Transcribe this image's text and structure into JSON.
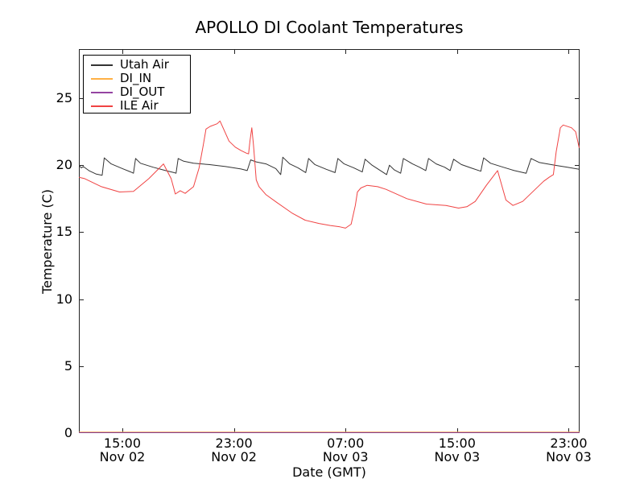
{
  "chart_data": {
    "type": "line",
    "title": "APOLLO DI Coolant Temperatures",
    "xlabel": "Date (GMT)",
    "ylabel": "Temperature (C)",
    "x_unit": "hours since Nov 02 00:00 GMT",
    "xlim_hours": [
      11.885,
      47.78
    ],
    "ylim": [
      0,
      28.67
    ],
    "grid": false,
    "legend_position": "upper left",
    "y_ticks": [
      0,
      5,
      10,
      15,
      20,
      25
    ],
    "x_ticks": [
      {
        "hour": 15,
        "time": "15:00",
        "date": "Nov 02"
      },
      {
        "hour": 23,
        "time": "23:00",
        "date": "Nov 02"
      },
      {
        "hour": 31,
        "time": "07:00",
        "date": "Nov 03"
      },
      {
        "hour": 39,
        "time": "15:00",
        "date": "Nov 03"
      },
      {
        "hour": 47,
        "time": "23:00",
        "date": "Nov 03"
      }
    ],
    "series": [
      {
        "name": "Utah Air",
        "color": "#333333",
        "points": [
          [
            11.89,
            20.0
          ],
          [
            12.05,
            19.8
          ],
          [
            12.2,
            19.9
          ],
          [
            12.6,
            19.6
          ],
          [
            13.1,
            19.35
          ],
          [
            13.55,
            19.25
          ],
          [
            13.7,
            20.55
          ],
          [
            14.2,
            20.1
          ],
          [
            15.0,
            19.75
          ],
          [
            15.6,
            19.5
          ],
          [
            15.8,
            19.4
          ],
          [
            15.95,
            20.5
          ],
          [
            16.3,
            20.15
          ],
          [
            17.2,
            19.85
          ],
          [
            18.1,
            19.6
          ],
          [
            18.7,
            19.45
          ],
          [
            18.85,
            19.4
          ],
          [
            19.0,
            20.5
          ],
          [
            19.4,
            20.3
          ],
          [
            20.1,
            20.15
          ],
          [
            21.2,
            20.05
          ],
          [
            22.4,
            19.9
          ],
          [
            23.5,
            19.72
          ],
          [
            23.95,
            19.6
          ],
          [
            24.2,
            20.4
          ],
          [
            24.6,
            20.25
          ],
          [
            25.3,
            20.1
          ],
          [
            26.0,
            19.75
          ],
          [
            26.35,
            19.3
          ],
          [
            26.5,
            20.6
          ],
          [
            27.0,
            20.1
          ],
          [
            27.6,
            19.8
          ],
          [
            28.15,
            19.45
          ],
          [
            28.35,
            20.5
          ],
          [
            28.8,
            20.05
          ],
          [
            29.6,
            19.7
          ],
          [
            30.25,
            19.45
          ],
          [
            30.45,
            20.5
          ],
          [
            30.9,
            20.1
          ],
          [
            31.6,
            19.8
          ],
          [
            32.2,
            19.5
          ],
          [
            32.4,
            20.45
          ],
          [
            32.9,
            20.0
          ],
          [
            33.5,
            19.6
          ],
          [
            33.95,
            19.3
          ],
          [
            34.15,
            20.0
          ],
          [
            34.5,
            19.65
          ],
          [
            34.95,
            19.4
          ],
          [
            35.15,
            20.5
          ],
          [
            35.8,
            20.1
          ],
          [
            36.3,
            19.85
          ],
          [
            36.75,
            19.6
          ],
          [
            36.95,
            20.5
          ],
          [
            37.5,
            20.1
          ],
          [
            38.1,
            19.85
          ],
          [
            38.5,
            19.6
          ],
          [
            38.75,
            20.45
          ],
          [
            39.3,
            20.05
          ],
          [
            40.0,
            19.8
          ],
          [
            40.7,
            19.55
          ],
          [
            40.9,
            20.55
          ],
          [
            41.4,
            20.15
          ],
          [
            42.3,
            19.85
          ],
          [
            43.1,
            19.6
          ],
          [
            43.95,
            19.4
          ],
          [
            44.3,
            20.5
          ],
          [
            44.9,
            20.2
          ],
          [
            46.0,
            20.0
          ],
          [
            46.9,
            19.85
          ],
          [
            47.75,
            19.7
          ]
        ]
      },
      {
        "name": "DI_IN",
        "color": "#ffb045",
        "points": [
          [
            11.89,
            0
          ],
          [
            47.78,
            0
          ]
        ]
      },
      {
        "name": "DI_OUT",
        "color": "#9544a1",
        "points": [
          [
            11.89,
            0
          ],
          [
            47.78,
            0
          ]
        ]
      },
      {
        "name": "ILE Air",
        "color": "#f04343",
        "points": [
          [
            11.89,
            19.1
          ],
          [
            12.3,
            19.0
          ],
          [
            13.5,
            18.4
          ],
          [
            14.8,
            18.0
          ],
          [
            15.8,
            18.05
          ],
          [
            16.9,
            19.0
          ],
          [
            17.95,
            20.1
          ],
          [
            18.5,
            19.0
          ],
          [
            18.8,
            17.85
          ],
          [
            19.15,
            18.1
          ],
          [
            19.5,
            17.9
          ],
          [
            20.1,
            18.4
          ],
          [
            20.5,
            19.8
          ],
          [
            20.8,
            21.5
          ],
          [
            21.0,
            22.7
          ],
          [
            21.3,
            22.9
          ],
          [
            21.8,
            23.1
          ],
          [
            22.0,
            23.3
          ],
          [
            22.35,
            22.5
          ],
          [
            22.65,
            21.8
          ],
          [
            23.1,
            21.35
          ],
          [
            23.5,
            21.1
          ],
          [
            23.9,
            20.9
          ],
          [
            24.05,
            20.85
          ],
          [
            24.15,
            21.8
          ],
          [
            24.28,
            22.8
          ],
          [
            24.4,
            21.5
          ],
          [
            24.6,
            18.9
          ],
          [
            24.8,
            18.4
          ],
          [
            25.3,
            17.8
          ],
          [
            26.1,
            17.2
          ],
          [
            27.2,
            16.4
          ],
          [
            28.1,
            15.9
          ],
          [
            29.1,
            15.65
          ],
          [
            29.9,
            15.5
          ],
          [
            30.6,
            15.4
          ],
          [
            31.0,
            15.3
          ],
          [
            31.4,
            15.6
          ],
          [
            31.7,
            17.0
          ],
          [
            31.85,
            18.0
          ],
          [
            32.1,
            18.3
          ],
          [
            32.55,
            18.5
          ],
          [
            33.3,
            18.4
          ],
          [
            33.9,
            18.2
          ],
          [
            35.4,
            17.5
          ],
          [
            36.8,
            17.1
          ],
          [
            38.2,
            17.0
          ],
          [
            39.1,
            16.8
          ],
          [
            39.7,
            16.9
          ],
          [
            40.3,
            17.3
          ],
          [
            41.1,
            18.5
          ],
          [
            41.9,
            19.6
          ],
          [
            42.5,
            17.4
          ],
          [
            43.0,
            17.0
          ],
          [
            43.7,
            17.3
          ],
          [
            44.6,
            18.2
          ],
          [
            45.2,
            18.8
          ],
          [
            45.6,
            19.1
          ],
          [
            45.9,
            19.3
          ],
          [
            46.1,
            21.0
          ],
          [
            46.4,
            22.8
          ],
          [
            46.6,
            23.0
          ],
          [
            47.2,
            22.8
          ],
          [
            47.5,
            22.5
          ],
          [
            47.75,
            21.3
          ]
        ]
      }
    ]
  }
}
